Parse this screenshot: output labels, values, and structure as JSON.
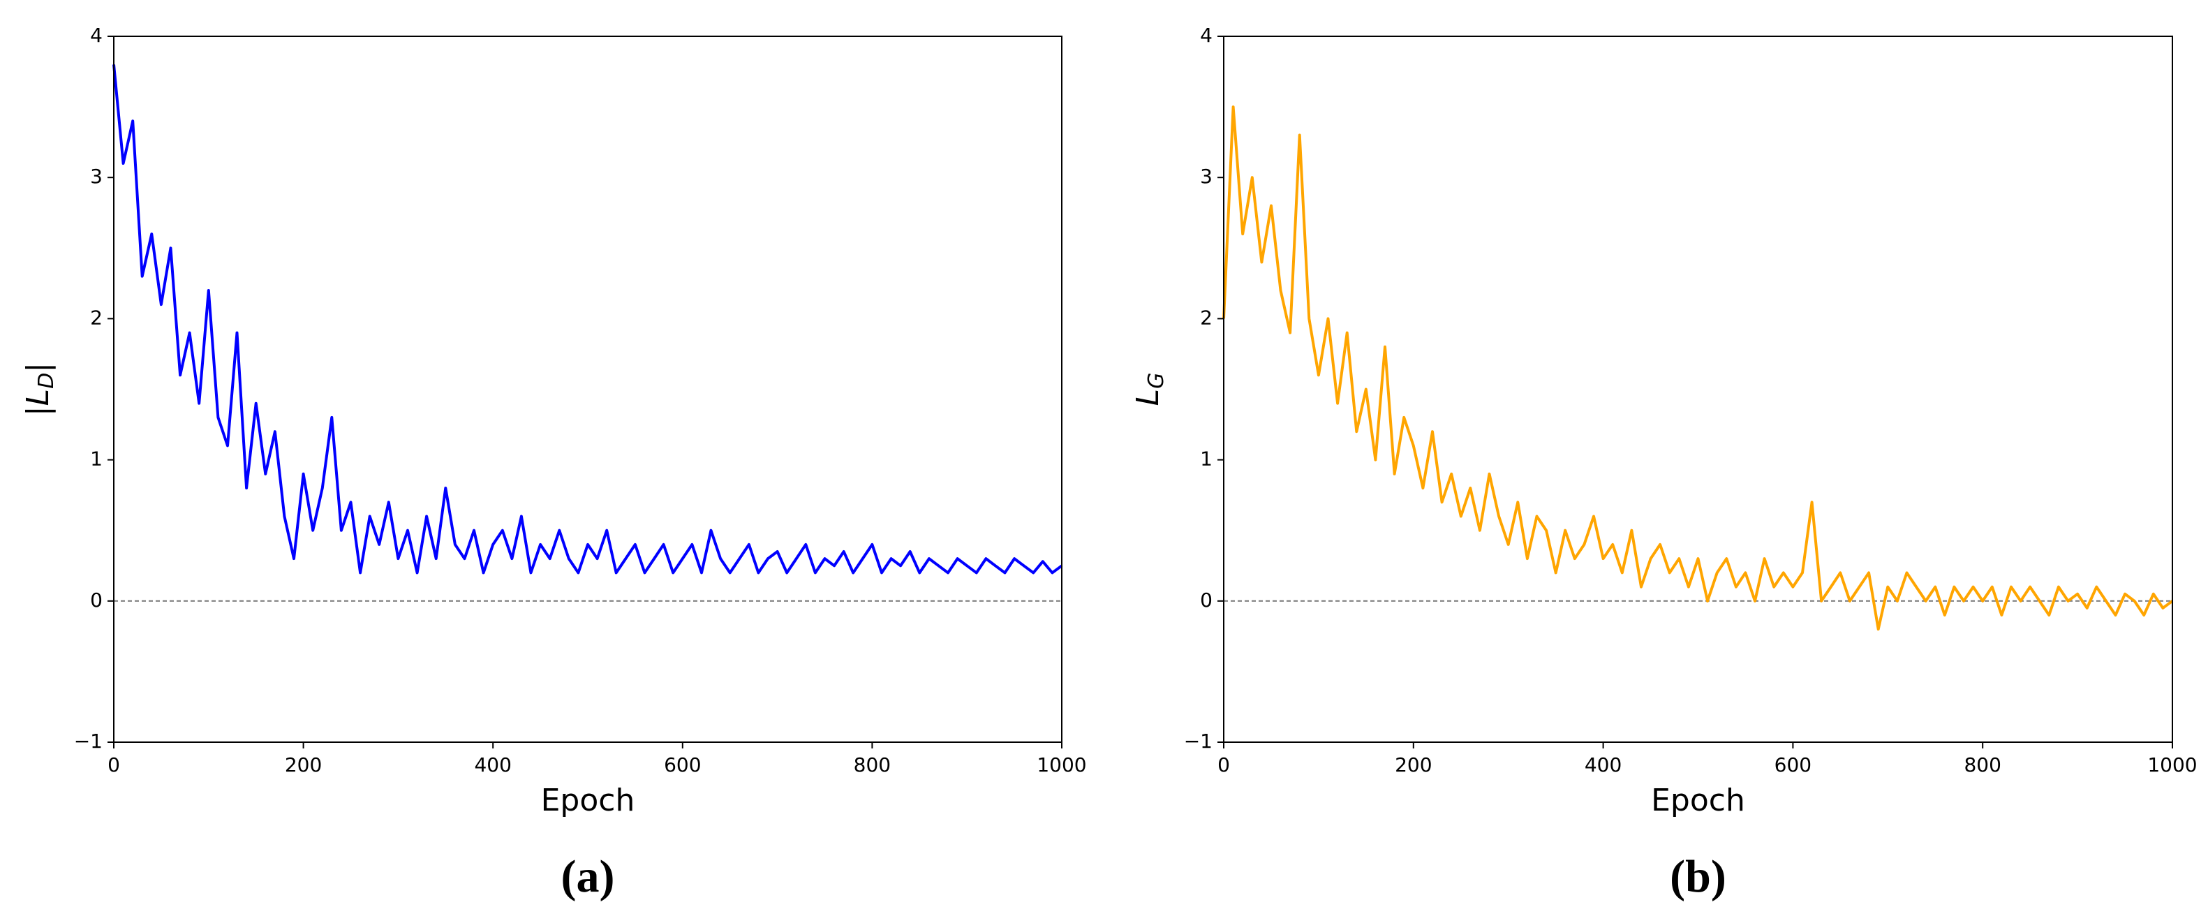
{
  "chart_data": [
    {
      "type": "line",
      "caption": "(a)",
      "xlabel": "Epoch",
      "ylabel": [
        "|L",
        "D",
        "|"
      ],
      "xlim": [
        0,
        1000
      ],
      "ylim": [
        -1,
        4
      ],
      "xticks": [
        0,
        200,
        400,
        600,
        800,
        1000
      ],
      "yticks": [
        {
          "value": -1,
          "label": "−1"
        },
        0,
        1,
        2,
        3,
        4
      ],
      "hline": 0,
      "series": [
        {
          "color": "#0000ff",
          "x": [
            0,
            10,
            20,
            30,
            40,
            50,
            60,
            70,
            80,
            90,
            100,
            110,
            120,
            130,
            140,
            150,
            160,
            170,
            180,
            190,
            200,
            210,
            220,
            230,
            240,
            250,
            260,
            270,
            280,
            290,
            300,
            310,
            320,
            330,
            340,
            350,
            360,
            370,
            380,
            390,
            400,
            410,
            420,
            430,
            440,
            450,
            460,
            470,
            480,
            490,
            500,
            510,
            520,
            530,
            540,
            550,
            560,
            570,
            580,
            590,
            600,
            610,
            620,
            630,
            640,
            650,
            660,
            670,
            680,
            690,
            700,
            710,
            720,
            730,
            740,
            750,
            760,
            770,
            780,
            790,
            800,
            810,
            820,
            830,
            840,
            850,
            860,
            870,
            880,
            890,
            900,
            910,
            920,
            930,
            940,
            950,
            960,
            970,
            980,
            990,
            1000
          ],
          "values": [
            3.8,
            3.1,
            3.4,
            2.3,
            2.6,
            2.1,
            2.5,
            1.6,
            1.9,
            1.4,
            2.2,
            1.3,
            1.1,
            1.9,
            0.8,
            1.4,
            0.9,
            1.2,
            0.6,
            0.3,
            0.9,
            0.5,
            0.8,
            1.3,
            0.5,
            0.7,
            0.2,
            0.6,
            0.4,
            0.7,
            0.3,
            0.5,
            0.2,
            0.6,
            0.3,
            0.8,
            0.4,
            0.3,
            0.5,
            0.2,
            0.4,
            0.5,
            0.3,
            0.6,
            0.2,
            0.4,
            0.3,
            0.5,
            0.3,
            0.2,
            0.4,
            0.3,
            0.5,
            0.2,
            0.3,
            0.4,
            0.2,
            0.3,
            0.4,
            0.2,
            0.3,
            0.4,
            0.2,
            0.5,
            0.3,
            0.2,
            0.3,
            0.4,
            0.2,
            0.3,
            0.35,
            0.2,
            0.3,
            0.4,
            0.2,
            0.3,
            0.25,
            0.35,
            0.2,
            0.3,
            0.4,
            0.2,
            0.3,
            0.25,
            0.35,
            0.2,
            0.3,
            0.25,
            0.2,
            0.3,
            0.25,
            0.2,
            0.3,
            0.25,
            0.2,
            0.3,
            0.25,
            0.2,
            0.28,
            0.2,
            0.25
          ]
        }
      ]
    },
    {
      "type": "line",
      "caption": "(b)",
      "xlabel": "Epoch",
      "ylabel": [
        "L",
        "G"
      ],
      "xlim": [
        0,
        1000
      ],
      "ylim": [
        -1,
        4
      ],
      "xticks": [
        0,
        200,
        400,
        600,
        800,
        1000
      ],
      "yticks": [
        {
          "value": -1,
          "label": "−1"
        },
        0,
        1,
        2,
        3,
        4
      ],
      "hline": 0,
      "series": [
        {
          "color": "#ffa500",
          "x": [
            0,
            10,
            20,
            30,
            40,
            50,
            60,
            70,
            80,
            90,
            100,
            110,
            120,
            130,
            140,
            150,
            160,
            170,
            180,
            190,
            200,
            210,
            220,
            230,
            240,
            250,
            260,
            270,
            280,
            290,
            300,
            310,
            320,
            330,
            340,
            350,
            360,
            370,
            380,
            390,
            400,
            410,
            420,
            430,
            440,
            450,
            460,
            470,
            480,
            490,
            500,
            510,
            520,
            530,
            540,
            550,
            560,
            570,
            580,
            590,
            600,
            610,
            620,
            630,
            640,
            650,
            660,
            670,
            680,
            690,
            700,
            710,
            720,
            730,
            740,
            750,
            760,
            770,
            780,
            790,
            800,
            810,
            820,
            830,
            840,
            850,
            860,
            870,
            880,
            890,
            900,
            910,
            920,
            930,
            940,
            950,
            960,
            970,
            980,
            990,
            1000
          ],
          "values": [
            2.0,
            3.5,
            2.6,
            3.0,
            2.4,
            2.8,
            2.2,
            1.9,
            3.3,
            2.0,
            1.6,
            2.0,
            1.4,
            1.9,
            1.2,
            1.5,
            1.0,
            1.8,
            0.9,
            1.3,
            1.1,
            0.8,
            1.2,
            0.7,
            0.9,
            0.6,
            0.8,
            0.5,
            0.9,
            0.6,
            0.4,
            0.7,
            0.3,
            0.6,
            0.5,
            0.2,
            0.5,
            0.3,
            0.4,
            0.6,
            0.3,
            0.4,
            0.2,
            0.5,
            0.1,
            0.3,
            0.4,
            0.2,
            0.3,
            0.1,
            0.3,
            0.0,
            0.2,
            0.3,
            0.1,
            0.2,
            0.0,
            0.3,
            0.1,
            0.2,
            0.1,
            0.2,
            0.7,
            0.0,
            0.1,
            0.2,
            0.0,
            0.1,
            0.2,
            -0.2,
            0.1,
            0.0,
            0.2,
            0.1,
            0.0,
            0.1,
            -0.1,
            0.1,
            0.0,
            0.1,
            0.0,
            0.1,
            -0.1,
            0.1,
            0.0,
            0.1,
            0.0,
            -0.1,
            0.1,
            0.0,
            0.05,
            -0.05,
            0.1,
            0.0,
            -0.1,
            0.05,
            0.0,
            -0.1,
            0.05,
            -0.05,
            0.0
          ]
        }
      ]
    }
  ]
}
